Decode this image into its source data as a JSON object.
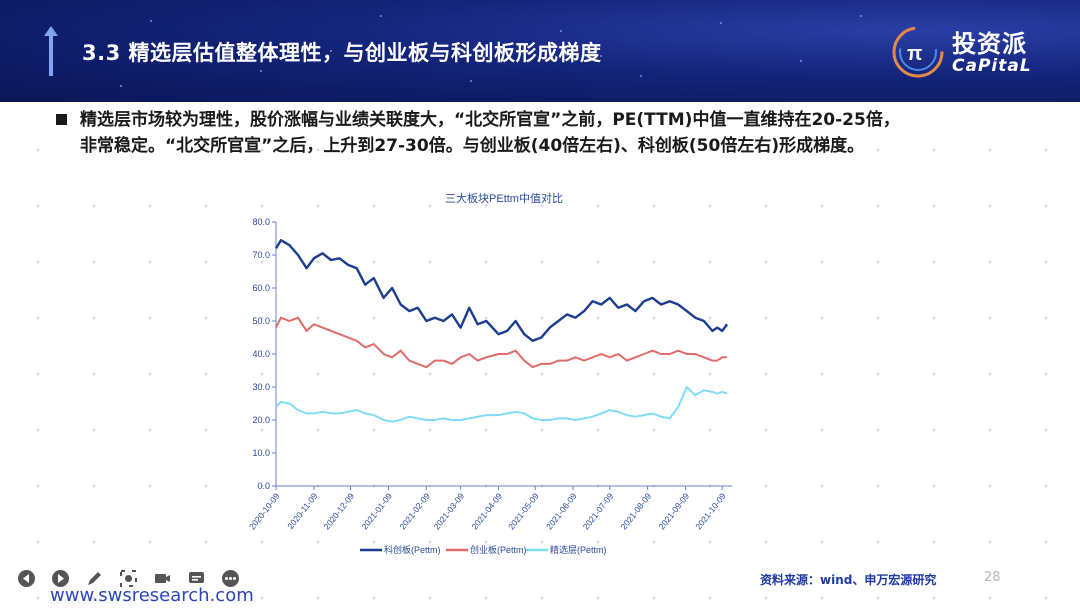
{
  "header": {
    "title": "3.3 精选层估值整体理性，与创业板与科创板形成梯度"
  },
  "logo": {
    "cn": "投资派",
    "en": "CaPitaL"
  },
  "bullet": {
    "text": "精选层市场较为理性，股价涨幅与业绩关联度大，“北交所官宣”之前，PE(TTM)中值一直维持在20-25倍，非常稳定。“北交所官宣”之后，上升到27-30倍。与创业板(40倍左右)、科创板(50倍左右)形成梯度。"
  },
  "footer": {
    "source": "资料来源：wind、申万宏源研究",
    "page": "28",
    "url": "www.swsresearch.com"
  },
  "toolbar": {
    "icons": [
      "prev-icon",
      "play-icon",
      "pen-icon",
      "target-icon",
      "camera-icon",
      "subtitle-icon",
      "more-icon"
    ]
  },
  "colors": {
    "kechuang": "#1a3d8f",
    "chuangye": "#e26a6a",
    "jingxuan": "#7fdcf6",
    "header": "#13247a"
  },
  "chart_data": {
    "type": "line",
    "title": "三大板块PEttm中值对比",
    "ylim": [
      0,
      80
    ],
    "yticks": [
      "0.0",
      "10.0",
      "20.0",
      "30.0",
      "40.0",
      "50.0",
      "60.0",
      "70.0",
      "80.0"
    ],
    "xticks": [
      "2020-10-09",
      "2020-11-09",
      "2020-12-09",
      "2021-01-09",
      "2021-02-09",
      "2021-03-09",
      "2021-04-09",
      "2021-05-09",
      "2021-06-09",
      "2021-07-09",
      "2021-08-09",
      "2021-09-09",
      "2021-10-09"
    ],
    "legend_position": "bottom",
    "series": [
      {
        "name": "科创板(Pettm)",
        "color": "#1a3d8f",
        "points": [
          [
            "2020-10-09",
            72
          ],
          [
            "2020-10-13",
            74.5
          ],
          [
            "2020-10-20",
            73
          ],
          [
            "2020-10-27",
            70
          ],
          [
            "2020-11-03",
            66
          ],
          [
            "2020-11-09",
            69
          ],
          [
            "2020-11-16",
            70.5
          ],
          [
            "2020-11-23",
            68.5
          ],
          [
            "2020-11-30",
            69
          ],
          [
            "2020-12-07",
            67
          ],
          [
            "2020-12-14",
            66
          ],
          [
            "2020-12-21",
            61
          ],
          [
            "2020-12-28",
            63
          ],
          [
            "2021-01-05",
            57
          ],
          [
            "2021-01-12",
            60
          ],
          [
            "2021-01-19",
            55
          ],
          [
            "2021-01-26",
            53
          ],
          [
            "2021-02-02",
            54
          ],
          [
            "2021-02-09",
            50
          ],
          [
            "2021-02-16",
            51
          ],
          [
            "2021-02-23",
            50
          ],
          [
            "2021-03-02",
            52
          ],
          [
            "2021-03-09",
            48
          ],
          [
            "2021-03-16",
            54
          ],
          [
            "2021-03-23",
            49
          ],
          [
            "2021-03-30",
            50
          ],
          [
            "2021-04-09",
            46
          ],
          [
            "2021-04-16",
            47
          ],
          [
            "2021-04-23",
            50
          ],
          [
            "2021-04-30",
            46
          ],
          [
            "2021-05-07",
            44
          ],
          [
            "2021-05-14",
            45
          ],
          [
            "2021-05-21",
            48
          ],
          [
            "2021-05-28",
            50
          ],
          [
            "2021-06-04",
            52
          ],
          [
            "2021-06-11",
            51
          ],
          [
            "2021-06-18",
            53
          ],
          [
            "2021-06-25",
            56
          ],
          [
            "2021-07-02",
            55
          ],
          [
            "2021-07-09",
            57
          ],
          [
            "2021-07-16",
            54
          ],
          [
            "2021-07-23",
            55
          ],
          [
            "2021-07-30",
            53
          ],
          [
            "2021-08-06",
            56
          ],
          [
            "2021-08-13",
            57
          ],
          [
            "2021-08-20",
            55
          ],
          [
            "2021-08-27",
            56
          ],
          [
            "2021-09-03",
            55
          ],
          [
            "2021-09-10",
            53
          ],
          [
            "2021-09-17",
            51
          ],
          [
            "2021-09-24",
            50
          ],
          [
            "2021-10-01",
            47
          ],
          [
            "2021-10-05",
            48
          ],
          [
            "2021-10-09",
            47
          ],
          [
            "2021-10-13",
            49
          ]
        ]
      },
      {
        "name": "创业板(Pettm)",
        "color": "#e26a6a",
        "points": [
          [
            "2020-10-09",
            48
          ],
          [
            "2020-10-13",
            51
          ],
          [
            "2020-10-20",
            50
          ],
          [
            "2020-10-27",
            51
          ],
          [
            "2020-11-03",
            47
          ],
          [
            "2020-11-09",
            49
          ],
          [
            "2020-11-16",
            48
          ],
          [
            "2020-11-23",
            47
          ],
          [
            "2020-11-30",
            46
          ],
          [
            "2020-12-07",
            45
          ],
          [
            "2020-12-14",
            44
          ],
          [
            "2020-12-21",
            42
          ],
          [
            "2020-12-28",
            43
          ],
          [
            "2021-01-05",
            40
          ],
          [
            "2021-01-12",
            39
          ],
          [
            "2021-01-19",
            41
          ],
          [
            "2021-01-26",
            38
          ],
          [
            "2021-02-02",
            37
          ],
          [
            "2021-02-09",
            36
          ],
          [
            "2021-02-16",
            38
          ],
          [
            "2021-02-23",
            38
          ],
          [
            "2021-03-02",
            37
          ],
          [
            "2021-03-09",
            39
          ],
          [
            "2021-03-16",
            40
          ],
          [
            "2021-03-23",
            38
          ],
          [
            "2021-03-30",
            39
          ],
          [
            "2021-04-09",
            40
          ],
          [
            "2021-04-16",
            40
          ],
          [
            "2021-04-23",
            41
          ],
          [
            "2021-04-30",
            38
          ],
          [
            "2021-05-07",
            36
          ],
          [
            "2021-05-14",
            37
          ],
          [
            "2021-05-21",
            37
          ],
          [
            "2021-05-28",
            38
          ],
          [
            "2021-06-04",
            38
          ],
          [
            "2021-06-11",
            39
          ],
          [
            "2021-06-18",
            38
          ],
          [
            "2021-06-25",
            39
          ],
          [
            "2021-07-02",
            40
          ],
          [
            "2021-07-09",
            39
          ],
          [
            "2021-07-16",
            40
          ],
          [
            "2021-07-23",
            38
          ],
          [
            "2021-07-30",
            39
          ],
          [
            "2021-08-06",
            40
          ],
          [
            "2021-08-13",
            41
          ],
          [
            "2021-08-20",
            40
          ],
          [
            "2021-08-27",
            40
          ],
          [
            "2021-09-03",
            41
          ],
          [
            "2021-09-10",
            40
          ],
          [
            "2021-09-17",
            40
          ],
          [
            "2021-09-24",
            39
          ],
          [
            "2021-10-01",
            38
          ],
          [
            "2021-10-05",
            38
          ],
          [
            "2021-10-09",
            39
          ],
          [
            "2021-10-13",
            39
          ]
        ]
      },
      {
        "name": "精选层(Pettm)",
        "color": "#7fdcf6",
        "points": [
          [
            "2020-10-09",
            24
          ],
          [
            "2020-10-13",
            25.5
          ],
          [
            "2020-10-20",
            25
          ],
          [
            "2020-10-27",
            23
          ],
          [
            "2020-11-03",
            22
          ],
          [
            "2020-11-09",
            22
          ],
          [
            "2020-11-16",
            22.5
          ],
          [
            "2020-11-23",
            22
          ],
          [
            "2020-11-30",
            22
          ],
          [
            "2020-12-07",
            22.5
          ],
          [
            "2020-12-14",
            23
          ],
          [
            "2020-12-21",
            22
          ],
          [
            "2020-12-28",
            21.5
          ],
          [
            "2021-01-05",
            20
          ],
          [
            "2021-01-12",
            19.5
          ],
          [
            "2021-01-19",
            20
          ],
          [
            "2021-01-26",
            21
          ],
          [
            "2021-02-02",
            20.5
          ],
          [
            "2021-02-09",
            20
          ],
          [
            "2021-02-16",
            20
          ],
          [
            "2021-02-23",
            20.5
          ],
          [
            "2021-03-02",
            20
          ],
          [
            "2021-03-09",
            20
          ],
          [
            "2021-03-16",
            20.5
          ],
          [
            "2021-03-23",
            21
          ],
          [
            "2021-03-30",
            21.5
          ],
          [
            "2021-04-09",
            21.5
          ],
          [
            "2021-04-16",
            22
          ],
          [
            "2021-04-23",
            22.5
          ],
          [
            "2021-04-30",
            22
          ],
          [
            "2021-05-07",
            20.5
          ],
          [
            "2021-05-14",
            20
          ],
          [
            "2021-05-21",
            20
          ],
          [
            "2021-05-28",
            20.5
          ],
          [
            "2021-06-04",
            20.5
          ],
          [
            "2021-06-11",
            20
          ],
          [
            "2021-06-18",
            20.5
          ],
          [
            "2021-06-25",
            21
          ],
          [
            "2021-07-02",
            22
          ],
          [
            "2021-07-09",
            23
          ],
          [
            "2021-07-16",
            22.5
          ],
          [
            "2021-07-23",
            21.5
          ],
          [
            "2021-07-30",
            21
          ],
          [
            "2021-08-06",
            21.5
          ],
          [
            "2021-08-13",
            22
          ],
          [
            "2021-08-20",
            21
          ],
          [
            "2021-08-27",
            20.5
          ],
          [
            "2021-09-03",
            24
          ],
          [
            "2021-09-10",
            30
          ],
          [
            "2021-09-17",
            27.5
          ],
          [
            "2021-09-24",
            29
          ],
          [
            "2021-10-01",
            28.5
          ],
          [
            "2021-10-05",
            28
          ],
          [
            "2021-10-09",
            28.5
          ],
          [
            "2021-10-13",
            28
          ]
        ]
      }
    ]
  }
}
